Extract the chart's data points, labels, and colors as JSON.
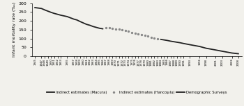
{
  "macura_years": [
    1945,
    1947,
    1948,
    1949,
    1950,
    1951,
    1952,
    1953,
    1954,
    1955,
    1957,
    1958,
    1959,
    1960,
    1961,
    1962,
    1963,
    1964,
    1965,
    1966
  ],
  "macura_values": [
    275,
    270,
    262,
    255,
    248,
    242,
    237,
    232,
    228,
    224,
    210,
    205,
    196,
    188,
    180,
    175,
    168,
    163,
    158,
    155
  ],
  "hancioglu_years": [
    1967,
    1968,
    1969,
    1970,
    1971,
    1972,
    1973,
    1974,
    1975,
    1976,
    1977,
    1978,
    1979,
    1980,
    1981,
    1982,
    1983
  ],
  "hancioglu_values": [
    163,
    160,
    158,
    155,
    152,
    148,
    144,
    140,
    135,
    130,
    126,
    122,
    118,
    113,
    108,
    104,
    97
  ],
  "survey_years": [
    1984,
    1985,
    1986,
    1987,
    1988,
    1989,
    1990,
    1991,
    1993,
    1996,
    1998,
    2001,
    2003,
    2006,
    2008
  ],
  "survey_values": [
    95,
    92,
    89,
    85,
    82,
    79,
    76,
    72,
    65,
    55,
    45,
    35,
    28,
    18,
    14
  ],
  "ylabel": "Infant mortality rate (‰)",
  "ylim": [
    0,
    300
  ],
  "yticks": [
    0,
    50,
    100,
    150,
    200,
    250,
    300
  ],
  "line1_color": "#222222",
  "line2_color": "#888888",
  "line3_color": "#222222",
  "background_color": "#f2f1ec",
  "legend_labels": [
    "Indirect estimates (Macura)",
    "Indirect estimates (Hancoşılu)",
    "Demographic Surveys"
  ],
  "xtick_labels": [
    1945,
    1947,
    1948,
    1949,
    1950,
    1951,
    1952,
    1953,
    1955,
    1957,
    1958,
    1959,
    1960,
    1961,
    1962,
    1963,
    1964,
    1965,
    1966,
    1967,
    1968,
    1969,
    1970,
    1971,
    1972,
    1973,
    1974,
    1975,
    1976,
    1977,
    1978,
    1979,
    1980,
    1981,
    1982,
    1983,
    1984,
    1985,
    1986,
    1987,
    1988,
    1989,
    1990,
    1991,
    1993,
    1996,
    1998,
    2001,
    2003,
    2006,
    2008
  ]
}
